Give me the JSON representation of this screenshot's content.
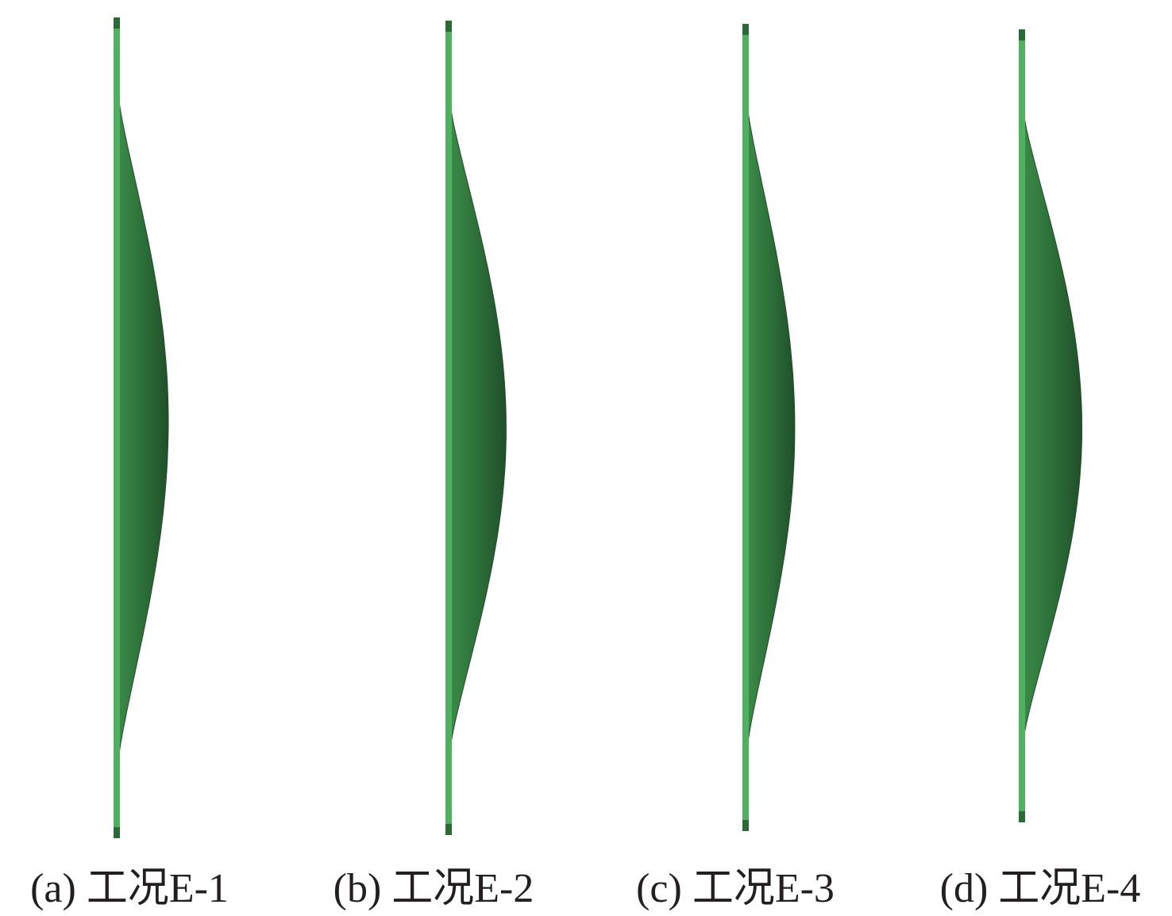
{
  "colors": {
    "pile_light": "#4fb060",
    "pile_dark": "#2a6a36",
    "deformation_fill": "#2c6e38",
    "deformation_edge": "#1e4f27",
    "caption_text": "#231f20"
  },
  "panels": [
    {
      "caption": "(a) 工况E-1",
      "deflection": 1.0
    },
    {
      "caption": "(b) 工况E-2",
      "deflection": 1.12
    },
    {
      "caption": "(c) 工况E-3",
      "deflection": 0.95
    },
    {
      "caption": "(d) 工况E-4",
      "deflection": 1.17
    }
  ]
}
